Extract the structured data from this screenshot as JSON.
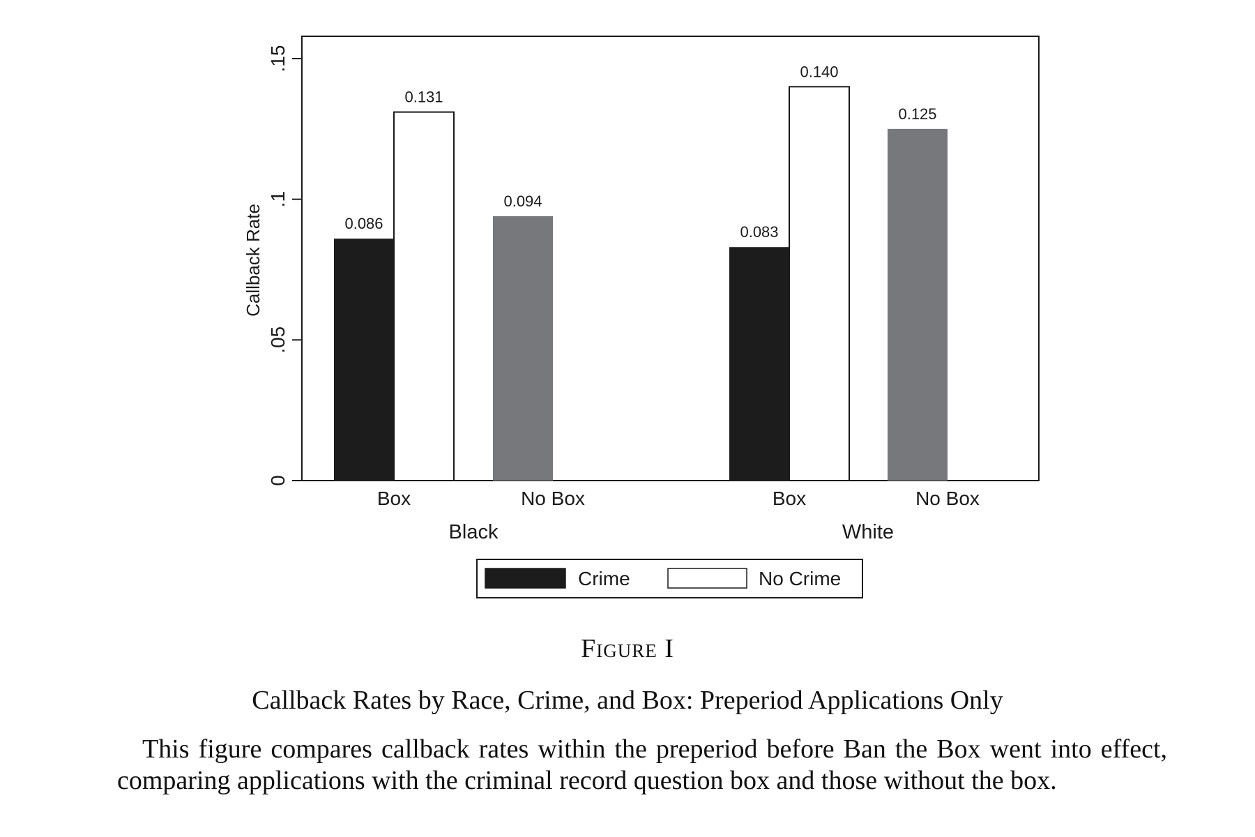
{
  "chart_data": {
    "type": "bar",
    "groups": [
      "Black",
      "White"
    ],
    "subcategories": [
      "Box",
      "No Box"
    ],
    "ylabel": "Callback Rate",
    "xlabel": "",
    "ylim": [
      0,
      0.15
    ],
    "yticks": [
      {
        "value": 0,
        "label": "0"
      },
      {
        "value": 0.05,
        "label": ".05"
      },
      {
        "value": 0.1,
        "label": ".1"
      },
      {
        "value": 0.15,
        "label": ".15"
      }
    ],
    "bars": [
      {
        "group": "Black",
        "subcategory": "Box",
        "series": "Crime",
        "value": 0.086,
        "label": "0.086"
      },
      {
        "group": "Black",
        "subcategory": "Box",
        "series": "No Crime",
        "value": 0.131,
        "label": "0.131"
      },
      {
        "group": "Black",
        "subcategory": "No Box",
        "series": "No Box",
        "value": 0.094,
        "label": "0.094"
      },
      {
        "group": "White",
        "subcategory": "Box",
        "series": "Crime",
        "value": 0.083,
        "label": "0.083"
      },
      {
        "group": "White",
        "subcategory": "Box",
        "series": "No Crime",
        "value": 0.14,
        "label": "0.140"
      },
      {
        "group": "White",
        "subcategory": "No Box",
        "series": "No Box",
        "value": 0.125,
        "label": "0.125"
      }
    ],
    "legend": {
      "placement": "bottom",
      "entries": [
        {
          "label": "Crime",
          "color": "#1c1c1c"
        },
        {
          "label": "No Crime",
          "color": "#ffffff"
        }
      ]
    },
    "colors": {
      "crime": "#1c1c1c",
      "no_crime": "#ffffff",
      "no_box": "#77787b"
    },
    "grid": false
  },
  "figure": {
    "label": "Figure I",
    "title": "Callback Rates by Race, Crime, and Box: Preperiod Applications Only",
    "note": "This figure compares callback rates within the preperiod before Ban the Box went into effect, comparing applications with the criminal record question box and those without the box."
  }
}
